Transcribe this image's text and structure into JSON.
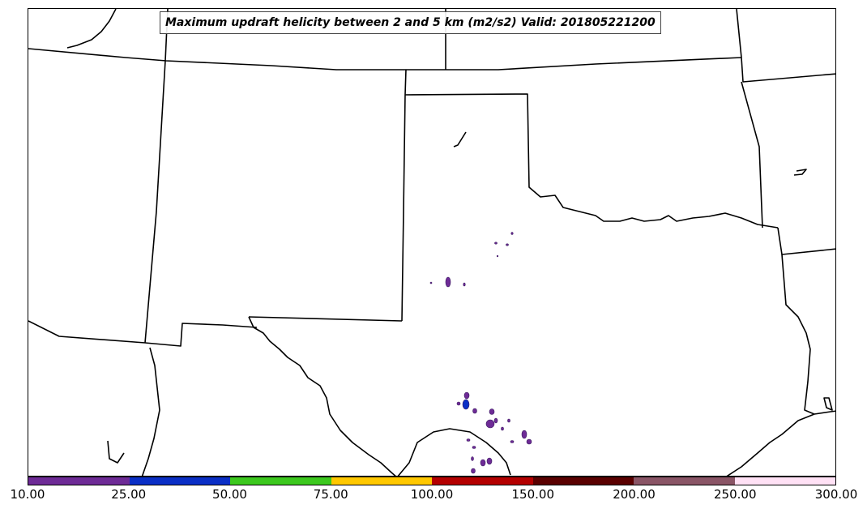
{
  "map": {
    "title": "Maximum updraft helicity between 2 and 5 km (m2/s2) Valid: 201805221200",
    "boundary_color": "#000000",
    "background_color": "#ffffff"
  },
  "colorbar": {
    "ticks": [
      "10.00",
      "25.00",
      "50.00",
      "75.00",
      "100.00",
      "150.00",
      "200.00",
      "250.00",
      "300.00"
    ],
    "colors": [
      "#6e2b96",
      "#0a2fc6",
      "#3cc81e",
      "#ffc800",
      "#b40000",
      "#5a0000",
      "#8a5566",
      "#ffe1f5"
    ]
  }
}
